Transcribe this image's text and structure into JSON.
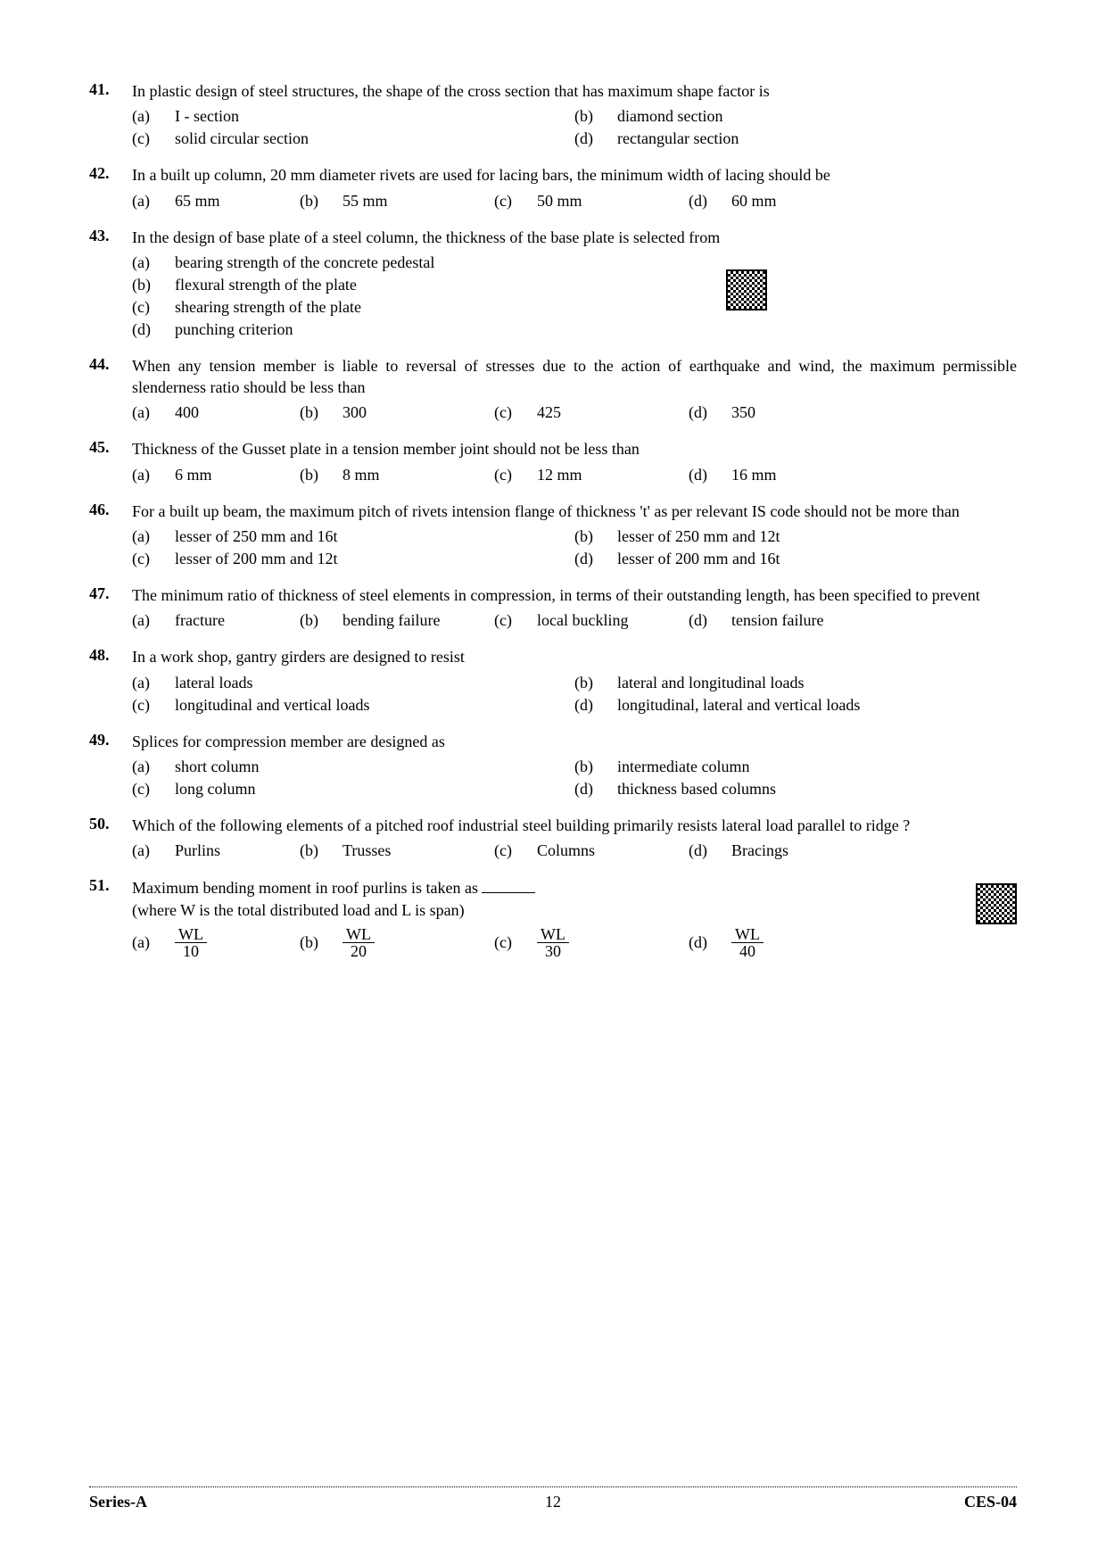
{
  "footer": {
    "series": "Series-A",
    "page": "12",
    "code": "CES-04"
  },
  "questions": [
    {
      "num": "41.",
      "text": "In plastic design of steel structures, the shape of the cross section that has maximum shape factor is",
      "layout": "2",
      "opts": [
        {
          "l": "(a)",
          "t": "I - section"
        },
        {
          "l": "(b)",
          "t": "diamond section"
        },
        {
          "l": "(c)",
          "t": "solid circular section"
        },
        {
          "l": "(d)",
          "t": "rectangular section"
        }
      ]
    },
    {
      "num": "42.",
      "text": "In a built up column, 20 mm diameter rivets are used for lacing bars, the minimum width of lacing should be",
      "layout": "4",
      "opts": [
        {
          "l": "(a)",
          "t": "65 mm"
        },
        {
          "l": "(b)",
          "t": "55 mm"
        },
        {
          "l": "(c)",
          "t": "50 mm"
        },
        {
          "l": "(d)",
          "t": "60 mm"
        }
      ]
    },
    {
      "num": "43.",
      "text": "In the design of base plate of a steel column, the thickness of the base plate is selected from",
      "layout": "1",
      "qr": "qr-43",
      "opts": [
        {
          "l": "(a)",
          "t": "bearing strength of the concrete pedestal"
        },
        {
          "l": "(b)",
          "t": "flexural strength of the plate"
        },
        {
          "l": "(c)",
          "t": "shearing strength of the plate"
        },
        {
          "l": "(d)",
          "t": "punching criterion"
        }
      ]
    },
    {
      "num": "44.",
      "text": "When any tension member is liable to reversal of stresses due to the action of earthquake and wind, the maximum permissible slenderness ratio should be less than",
      "layout": "4",
      "opts": [
        {
          "l": "(a)",
          "t": "400"
        },
        {
          "l": "(b)",
          "t": "300"
        },
        {
          "l": "(c)",
          "t": "425"
        },
        {
          "l": "(d)",
          "t": "350"
        }
      ]
    },
    {
      "num": "45.",
      "text": "Thickness of the Gusset plate in a tension member joint should not be less than",
      "layout": "4",
      "opts": [
        {
          "l": "(a)",
          "t": "6 mm"
        },
        {
          "l": "(b)",
          "t": "8 mm"
        },
        {
          "l": "(c)",
          "t": "12 mm"
        },
        {
          "l": "(d)",
          "t": "16 mm"
        }
      ]
    },
    {
      "num": "46.",
      "text": "For a built up beam, the maximum pitch of rivets intension flange of thickness 't' as per relevant IS code should not be more than",
      "layout": "2",
      "opts": [
        {
          "l": "(a)",
          "t": "lesser of 250 mm and 16t"
        },
        {
          "l": "(b)",
          "t": "lesser of 250 mm and 12t"
        },
        {
          "l": "(c)",
          "t": "lesser of 200 mm and 12t"
        },
        {
          "l": "(d)",
          "t": "lesser of 200 mm and 16t"
        }
      ]
    },
    {
      "num": "47.",
      "text": "The minimum ratio of thickness of steel elements in compression, in terms of their outstanding length, has been specified to prevent",
      "layout": "4",
      "opts": [
        {
          "l": "(a)",
          "t": "fracture"
        },
        {
          "l": "(b)",
          "t": "bending failure"
        },
        {
          "l": "(c)",
          "t": "local buckling"
        },
        {
          "l": "(d)",
          "t": "tension failure"
        }
      ]
    },
    {
      "num": "48.",
      "text": "In a work shop, gantry girders are designed to resist",
      "layout": "2",
      "opts": [
        {
          "l": "(a)",
          "t": "lateral loads"
        },
        {
          "l": "(b)",
          "t": "lateral and longitudinal loads"
        },
        {
          "l": "(c)",
          "t": "longitudinal and vertical loads"
        },
        {
          "l": "(d)",
          "t": "longitudinal, lateral and vertical loads"
        }
      ]
    },
    {
      "num": "49.",
      "text": "Splices for compression member are designed as",
      "layout": "2",
      "opts": [
        {
          "l": "(a)",
          "t": "short column"
        },
        {
          "l": "(b)",
          "t": "intermediate column"
        },
        {
          "l": "(c)",
          "t": "long column"
        },
        {
          "l": "(d)",
          "t": "thickness based columns"
        }
      ]
    },
    {
      "num": "50.",
      "text": "Which of the following elements of a pitched roof industrial steel building primarily resists lateral load parallel to ridge ?",
      "layout": "4",
      "opts": [
        {
          "l": "(a)",
          "t": "Purlins"
        },
        {
          "l": "(b)",
          "t": "Trusses"
        },
        {
          "l": "(c)",
          "t": "Columns"
        },
        {
          "l": "(d)",
          "t": "Bracings"
        }
      ]
    },
    {
      "num": "51.",
      "text_html": "Maximum bending moment in roof purlins is taken as <span class='blank'></span><br>(where W is the total distributed load and L is span)",
      "layout": "4frac",
      "qr": "qr-51",
      "opts": [
        {
          "l": "(a)",
          "num": "WL",
          "den": "10"
        },
        {
          "l": "(b)",
          "num": "WL",
          "den": "20"
        },
        {
          "l": "(c)",
          "num": "WL",
          "den": "30"
        },
        {
          "l": "(d)",
          "num": "WL",
          "den": "40"
        }
      ]
    }
  ]
}
